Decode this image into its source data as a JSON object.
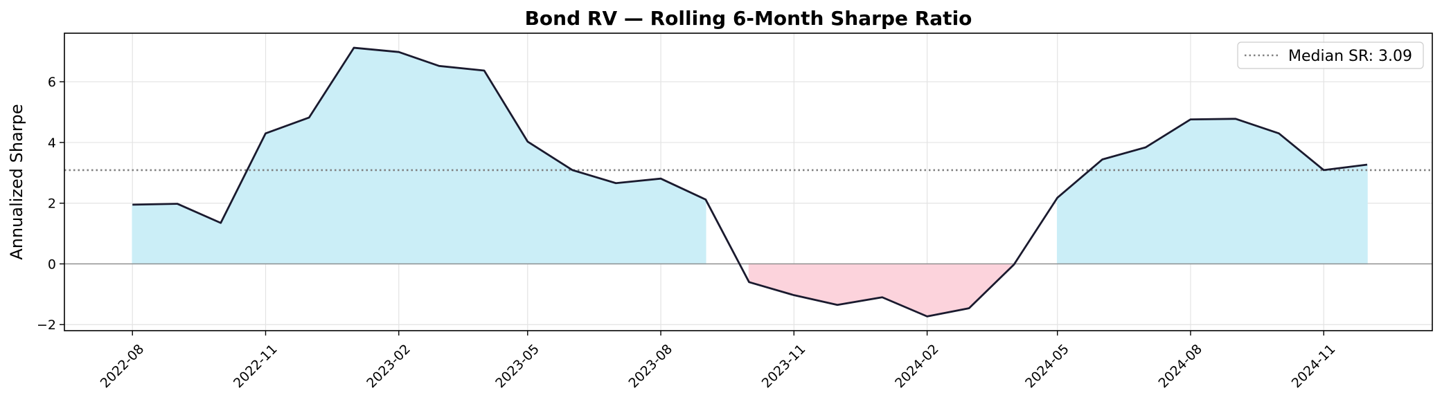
{
  "chart_data": {
    "type": "area",
    "title": "Bond RV — Rolling 6-Month Sharpe Ratio",
    "xlabel": "",
    "ylabel": "Annualized Sharpe",
    "x_tick_labels": [
      "2022-08",
      "2022-11",
      "2023-02",
      "2023-05",
      "2023-08",
      "2023-11",
      "2024-02",
      "2024-05",
      "2024-08",
      "2024-11"
    ],
    "y_ticks": [
      -2,
      0,
      2,
      4,
      6
    ],
    "y_tick_labels": [
      "−2",
      "0",
      "2",
      "4",
      "6"
    ],
    "ylim": [
      -2.2,
      7.6
    ],
    "xlim": [
      "2022-06-15",
      "2025-01-15"
    ],
    "grid": true,
    "legend_position": "top-right",
    "x": [
      "2022-08-01",
      "2022-09-01",
      "2022-10-01",
      "2022-11-01",
      "2022-12-01",
      "2023-01-01",
      "2023-02-01",
      "2023-03-01",
      "2023-04-01",
      "2023-05-01",
      "2023-06-01",
      "2023-07-01",
      "2023-08-01",
      "2023-09-01",
      "2023-10-01",
      "2023-11-01",
      "2023-12-01",
      "2024-01-01",
      "2024-02-01",
      "2024-03-01",
      "2024-04-01",
      "2024-05-01",
      "2024-06-01",
      "2024-07-01",
      "2024-08-01",
      "2024-09-01",
      "2024-10-01",
      "2024-11-01",
      "2024-12-01"
    ],
    "series": [
      {
        "values": [
          1.95,
          1.98,
          1.35,
          4.3,
          4.82,
          7.12,
          6.98,
          6.52,
          6.37,
          4.03,
          3.09,
          2.66,
          2.81,
          2.12,
          -0.6,
          -1.03,
          -1.35,
          -1.1,
          -1.73,
          -1.46,
          -0.02,
          2.18,
          3.44,
          3.84,
          4.76,
          4.78,
          4.3,
          3.09,
          3.27
        ],
        "color": "#1a1a2e"
      }
    ],
    "reference_line": {
      "label": "Median SR: 3.09",
      "value": 3.09,
      "color": "#808080"
    },
    "fill_colors": {
      "positive": "#cbeef7",
      "negative": "#fcd3dc"
    }
  }
}
